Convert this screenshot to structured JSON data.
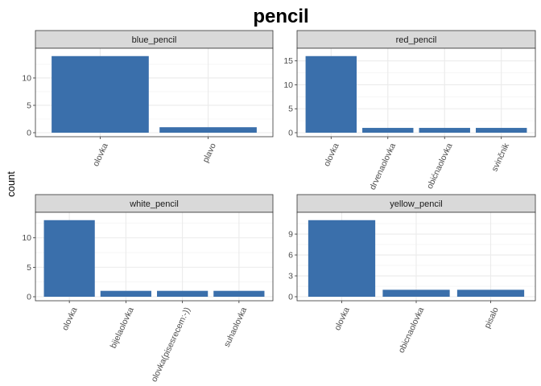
{
  "chart_data": {
    "type": "bar",
    "title": "pencil",
    "ylabel": "count",
    "bar_color": "#3A6FAB",
    "strip_color": "#D9D9D9",
    "panels": [
      {
        "name": "blue_pencil",
        "categories": [
          "olovka",
          "plavo"
        ],
        "values": [
          14,
          1
        ],
        "yticks": [
          0,
          5,
          10
        ],
        "ylim": [
          0,
          14.7
        ]
      },
      {
        "name": "red_pencil",
        "categories": [
          "olovka",
          "drvenaolovka",
          "obićnaolovka",
          "svinčnik"
        ],
        "values": [
          16,
          1,
          1,
          1
        ],
        "yticks": [
          0,
          5,
          10,
          15
        ],
        "ylim": [
          0,
          16.8
        ]
      },
      {
        "name": "white_pencil",
        "categories": [
          "olovka",
          "bijelaolovka",
          "olovka(pisesrecem:-))",
          "suhaolovka"
        ],
        "values": [
          13,
          1,
          1,
          1
        ],
        "yticks": [
          0,
          5,
          10
        ],
        "ylim": [
          0,
          13.65
        ]
      },
      {
        "name": "yellow_pencil",
        "categories": [
          "olovka",
          "obicnaolovka",
          "pisalo"
        ],
        "values": [
          11,
          1,
          1
        ],
        "yticks": [
          0,
          3,
          6,
          9
        ],
        "ylim": [
          0,
          11.55
        ]
      }
    ]
  }
}
